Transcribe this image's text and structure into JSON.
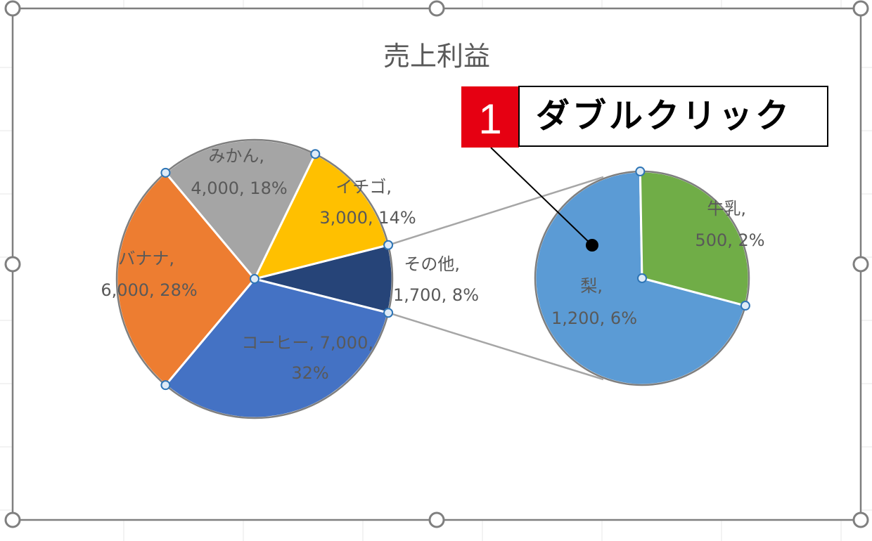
{
  "chart_data": {
    "type": "pie",
    "subtype": "pie-of-pie",
    "title": "売上利益",
    "primary": {
      "slices": [
        {
          "label": "コーヒー",
          "value": 7000,
          "percent": "32%",
          "color": "#4472C4"
        },
        {
          "label": "バナナ",
          "value": 6000,
          "percent": "28%",
          "color": "#ED7D31"
        },
        {
          "label": "みかん",
          "value": 4000,
          "percent": "18%",
          "color": "#A5A5A5"
        },
        {
          "label": "イチゴ",
          "value": 3000,
          "percent": "14%",
          "color": "#FFC000"
        },
        {
          "label": "その他",
          "value": 1700,
          "percent": "8%",
          "color": "#264478"
        }
      ]
    },
    "secondary": {
      "slices": [
        {
          "label": "梨",
          "value": 1200,
          "percent": "6%",
          "color": "#5B9BD5"
        },
        {
          "label": "牛乳",
          "value": 500,
          "percent": "2%",
          "color": "#70AD47"
        }
      ]
    },
    "data_labels": {
      "coffee": [
        "コーヒー, 7,000,",
        "32%"
      ],
      "banana": [
        "バナナ,",
        "6,000, 28%"
      ],
      "mikan": [
        "みかん,",
        "4,000, 18%"
      ],
      "ichigo": [
        "イチゴ,",
        "3,000, 14%"
      ],
      "other": [
        "その他,",
        "1,700, 8%"
      ],
      "nashi": [
        "梨,",
        "1,200, 6%"
      ],
      "milk": [
        "牛乳,",
        "500, 2%"
      ]
    },
    "legend": "none"
  },
  "callout": {
    "step": "1",
    "text": "ダブルクリック",
    "step_color": "#E60012"
  },
  "colors": {
    "frame": "#7F7F7F",
    "handle_fill": "#DEEBF7",
    "handle_stroke": "#2E75B6",
    "connector": "#A6A6A6"
  }
}
